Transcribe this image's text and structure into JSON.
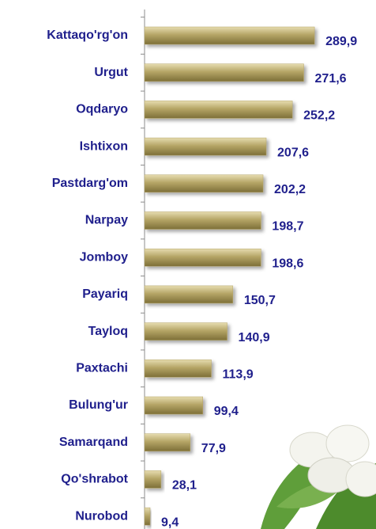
{
  "chart_data": {
    "type": "bar",
    "orientation": "horizontal",
    "categories": [
      "Kattaqo'rg'on",
      "Urgut",
      "Oqdaryo",
      "Ishtixon",
      "Pastdarg'om",
      "Narpay",
      "Jomboy",
      "Payariq",
      "Tayloq",
      "Paxtachi",
      "Bulung'ur",
      "Samarqand",
      "Qo'shrabot",
      "Nurobod"
    ],
    "values": [
      289.9,
      271.6,
      252.2,
      207.6,
      202.2,
      198.7,
      198.6,
      150.7,
      140.9,
      113.9,
      99.4,
      77.9,
      28.1,
      9.4
    ],
    "value_labels": [
      "289,9",
      "271,6",
      "252,2",
      "207,6",
      "202,2",
      "198,7",
      "198,6",
      "150,7",
      "140,9",
      "113,9",
      "99,4",
      "77,9",
      "28,1",
      "9,4"
    ],
    "color": "#b5a566"
  }
}
